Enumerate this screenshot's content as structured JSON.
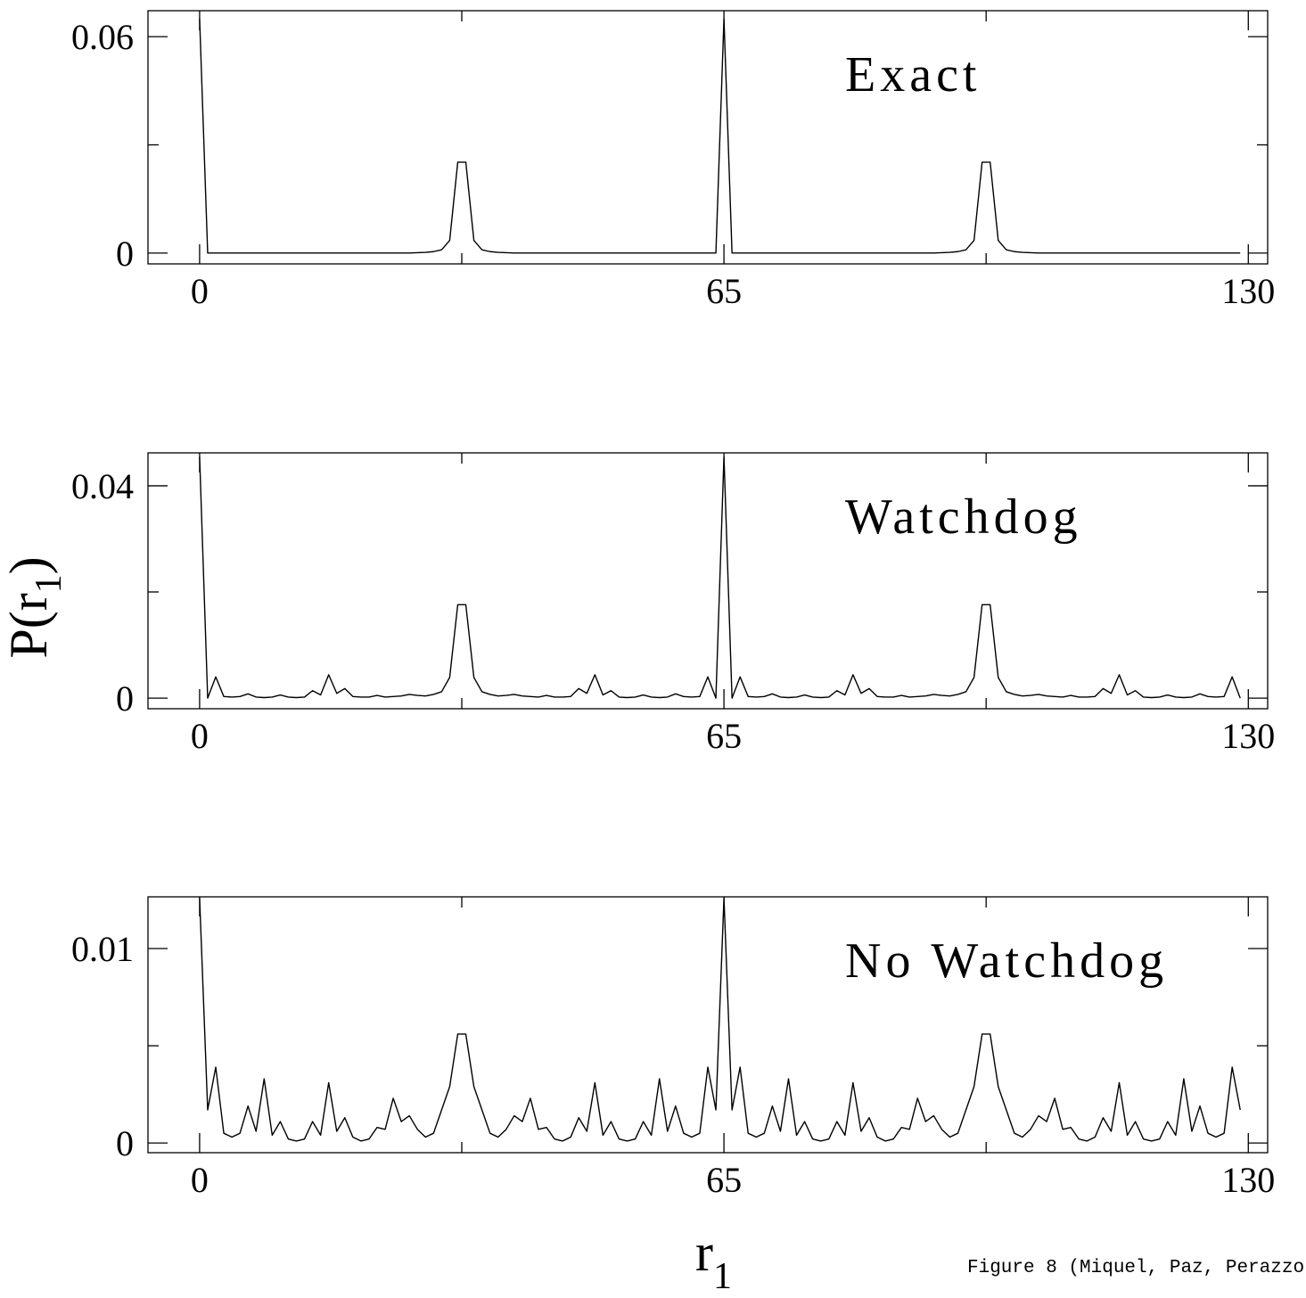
{
  "caption": "Figure 8 (Miquel, Paz, Perazzo",
  "chart_data": [
    {
      "type": "line",
      "label": "Exact",
      "color": "#000000",
      "xlim": [
        -6.4,
        132.4
      ],
      "xticks": [
        0,
        65,
        130
      ],
      "xticks_minor": [
        32.5,
        97.5
      ],
      "ylim": [
        -0.003,
        0.0672
      ],
      "yticks": [
        0,
        0.06
      ],
      "yticks_minor": [
        0.03
      ],
      "x": [
        0,
        1,
        2,
        3,
        4,
        5,
        6,
        7,
        8,
        9,
        10,
        11,
        12,
        13,
        14,
        15,
        16,
        17,
        18,
        19,
        20,
        21,
        22,
        23,
        24,
        25,
        26,
        27,
        28,
        29,
        30,
        31,
        32,
        33,
        34,
        35,
        36,
        37,
        38,
        39,
        40,
        41,
        42,
        43,
        44,
        45,
        46,
        47,
        48,
        49,
        50,
        51,
        52,
        53,
        54,
        55,
        56,
        57,
        58,
        59,
        60,
        61,
        62,
        63,
        64,
        65,
        66,
        67,
        68,
        69,
        70,
        71,
        72,
        73,
        74,
        75,
        76,
        77,
        78,
        79,
        80,
        81,
        82,
        83,
        84,
        85,
        86,
        87,
        88,
        89,
        90,
        91,
        92,
        93,
        94,
        95,
        96,
        97,
        98,
        99,
        100,
        101,
        102,
        103,
        104,
        105,
        106,
        107,
        108,
        109,
        110,
        111,
        112,
        113,
        114,
        115,
        116,
        117,
        118,
        119,
        120,
        121,
        122,
        123,
        124,
        125,
        126,
        127,
        128,
        129
      ],
      "values": [
        0.065,
        0,
        0,
        0,
        0,
        0,
        0,
        0,
        0,
        0,
        0,
        0,
        0,
        0,
        0,
        0,
        0,
        0,
        0,
        0,
        0,
        0,
        0,
        0,
        0,
        0,
        0,
        0.0001,
        0.0002,
        0.0004,
        0.0009,
        0.0035,
        0.0252,
        0.0252,
        0.0035,
        0.0009,
        0.0004,
        0.0002,
        0.0001,
        0,
        0,
        0,
        0,
        0,
        0,
        0,
        0,
        0,
        0,
        0,
        0,
        0,
        0,
        0,
        0,
        0,
        0,
        0,
        0,
        0,
        0,
        0,
        0,
        0,
        0,
        0.065,
        0,
        0,
        0,
        0,
        0,
        0,
        0,
        0,
        0,
        0,
        0,
        0,
        0,
        0,
        0,
        0,
        0,
        0,
        0,
        0,
        0,
        0,
        0,
        0,
        0,
        0,
        0.0001,
        0.0002,
        0.0004,
        0.0009,
        0.0035,
        0.0252,
        0.0252,
        0.0035,
        0.0009,
        0.0004,
        0.0002,
        0.0001,
        0,
        0,
        0,
        0,
        0,
        0,
        0,
        0,
        0,
        0,
        0,
        0,
        0,
        0,
        0,
        0,
        0,
        0,
        0,
        0,
        0,
        0,
        0,
        0,
        0,
        0
      ]
    },
    {
      "type": "line",
      "label": "Watchdog",
      "color": "#000000",
      "ylabel": "P(r",
      "ylabel_sub": "1",
      "ylabel_close": ")",
      "xlim": [
        -6.4,
        132.4
      ],
      "xticks": [
        0,
        65,
        130
      ],
      "xticks_minor": [
        32.5,
        97.5
      ],
      "ylim": [
        -0.002,
        0.0462
      ],
      "yticks": [
        0,
        0.04
      ],
      "yticks_minor": [
        0.02
      ],
      "x": [
        0,
        1,
        2,
        3,
        4,
        5,
        6,
        7,
        8,
        9,
        10,
        11,
        12,
        13,
        14,
        15,
        16,
        17,
        18,
        19,
        20,
        21,
        22,
        23,
        24,
        25,
        26,
        27,
        28,
        29,
        30,
        31,
        32,
        33,
        34,
        35,
        36,
        37,
        38,
        39,
        40,
        41,
        42,
        43,
        44,
        45,
        46,
        47,
        48,
        49,
        50,
        51,
        52,
        53,
        54,
        55,
        56,
        57,
        58,
        59,
        60,
        61,
        62,
        63,
        64,
        65,
        66,
        67,
        68,
        69,
        70,
        71,
        72,
        73,
        74,
        75,
        76,
        77,
        78,
        79,
        80,
        81,
        82,
        83,
        84,
        85,
        86,
        87,
        88,
        89,
        90,
        91,
        92,
        93,
        94,
        95,
        96,
        97,
        98,
        99,
        100,
        101,
        102,
        103,
        104,
        105,
        106,
        107,
        108,
        109,
        110,
        111,
        112,
        113,
        114,
        115,
        116,
        117,
        118,
        119,
        120,
        121,
        122,
        123,
        124,
        125,
        126,
        127,
        128,
        129
      ],
      "values": [
        0.0455,
        0,
        0.004,
        0.0003,
        0.0002,
        0.0003,
        0.0008,
        0.0002,
        0.0001,
        0.0002,
        0.0006,
        0.0002,
        0.0001,
        0.0002,
        0.0014,
        0.0006,
        0.0044,
        0.0009,
        0.0018,
        0.0003,
        0.0002,
        0.0002,
        0.0005,
        0.0002,
        0.0003,
        0.0004,
        0.0007,
        0.0005,
        0.0004,
        0.0007,
        0.0012,
        0.0039,
        0.0176,
        0.0176,
        0.0039,
        0.0012,
        0.0007,
        0.0004,
        0.0005,
        0.0007,
        0.0004,
        0.0003,
        0.0002,
        0.0005,
        0.0002,
        0.0002,
        0.0003,
        0.0018,
        0.0009,
        0.0044,
        0.0006,
        0.0014,
        0.0002,
        0.0001,
        0.0002,
        0.0006,
        0.0002,
        0.0001,
        0.0002,
        0.0008,
        0.0003,
        0.0002,
        0.0003,
        0.004,
        0,
        0.0455,
        0,
        0.004,
        0.0003,
        0.0002,
        0.0003,
        0.0008,
        0.0002,
        0.0001,
        0.0002,
        0.0006,
        0.0002,
        0.0001,
        0.0002,
        0.0014,
        0.0006,
        0.0044,
        0.0009,
        0.0018,
        0.0003,
        0.0002,
        0.0002,
        0.0005,
        0.0002,
        0.0003,
        0.0004,
        0.0007,
        0.0005,
        0.0004,
        0.0007,
        0.0012,
        0.0039,
        0.0176,
        0.0176,
        0.0039,
        0.0012,
        0.0007,
        0.0004,
        0.0005,
        0.0007,
        0.0004,
        0.0003,
        0.0002,
        0.0005,
        0.0002,
        0.0002,
        0.0003,
        0.0018,
        0.0009,
        0.0044,
        0.0006,
        0.0014,
        0.0002,
        0.0001,
        0.0002,
        0.0006,
        0.0002,
        0.0001,
        0.0002,
        0.0008,
        0.0003,
        0.0002,
        0.0003,
        0.004,
        0
      ]
    },
    {
      "type": "line",
      "label": "No Watchdog",
      "color": "#000000",
      "xlabel": "r",
      "xlabel_sub": "1",
      "xlim": [
        -6.4,
        132.4
      ],
      "xticks": [
        0,
        65,
        130
      ],
      "xticks_minor": [
        32.5,
        97.5
      ],
      "ylim": [
        -0.0005,
        0.01266
      ],
      "yticks": [
        0,
        0.01
      ],
      "yticks_minor": [
        0.005
      ],
      "x": [
        0,
        1,
        2,
        3,
        4,
        5,
        6,
        7,
        8,
        9,
        10,
        11,
        12,
        13,
        14,
        15,
        16,
        17,
        18,
        19,
        20,
        21,
        22,
        23,
        24,
        25,
        26,
        27,
        28,
        29,
        30,
        31,
        32,
        33,
        34,
        35,
        36,
        37,
        38,
        39,
        40,
        41,
        42,
        43,
        44,
        45,
        46,
        47,
        48,
        49,
        50,
        51,
        52,
        53,
        54,
        55,
        56,
        57,
        58,
        59,
        60,
        61,
        62,
        63,
        64,
        65,
        66,
        67,
        68,
        69,
        70,
        71,
        72,
        73,
        74,
        75,
        76,
        77,
        78,
        79,
        80,
        81,
        82,
        83,
        84,
        85,
        86,
        87,
        88,
        89,
        90,
        91,
        92,
        93,
        94,
        95,
        96,
        97,
        98,
        99,
        100,
        101,
        102,
        103,
        104,
        105,
        106,
        107,
        108,
        109,
        110,
        111,
        112,
        113,
        114,
        115,
        116,
        117,
        118,
        119,
        120,
        121,
        122,
        123,
        124,
        125,
        126,
        127,
        128,
        129
      ],
      "values": [
        0.0126,
        0.0017,
        0.0039,
        0.0005,
        0.0003,
        0.0005,
        0.0019,
        0.0006,
        0.0033,
        0.0004,
        0.0011,
        0.0002,
        0.0001,
        0.0002,
        0.0011,
        0.0004,
        0.0031,
        0.0006,
        0.0013,
        0.0003,
        0.0001,
        0.0002,
        0.0008,
        0.0007,
        0.0023,
        0.0011,
        0.0014,
        0.0007,
        0.0003,
        0.0005,
        0.0017,
        0.0029,
        0.0056,
        0.0056,
        0.0029,
        0.0017,
        0.0005,
        0.0003,
        0.0007,
        0.0014,
        0.0011,
        0.0023,
        0.0007,
        0.0008,
        0.0002,
        0.0001,
        0.0003,
        0.0013,
        0.0006,
        0.0031,
        0.0004,
        0.0011,
        0.0002,
        0.0001,
        0.0002,
        0.0011,
        0.0004,
        0.0033,
        0.0006,
        0.0019,
        0.0005,
        0.0003,
        0.0005,
        0.0039,
        0.0017,
        0.0126,
        0.0017,
        0.0039,
        0.0005,
        0.0003,
        0.0005,
        0.0019,
        0.0006,
        0.0033,
        0.0004,
        0.0011,
        0.0002,
        0.0001,
        0.0002,
        0.0011,
        0.0004,
        0.0031,
        0.0006,
        0.0013,
        0.0003,
        0.0001,
        0.0002,
        0.0008,
        0.0007,
        0.0023,
        0.0011,
        0.0014,
        0.0007,
        0.0003,
        0.0005,
        0.0017,
        0.0029,
        0.0056,
        0.0056,
        0.0029,
        0.0017,
        0.0005,
        0.0003,
        0.0007,
        0.0014,
        0.0011,
        0.0023,
        0.0007,
        0.0008,
        0.0002,
        0.0001,
        0.0003,
        0.0013,
        0.0006,
        0.0031,
        0.0004,
        0.0011,
        0.0002,
        0.0001,
        0.0002,
        0.0011,
        0.0004,
        0.0033,
        0.0006,
        0.0019,
        0.0005,
        0.0003,
        0.0005,
        0.0039,
        0.0017
      ]
    }
  ]
}
